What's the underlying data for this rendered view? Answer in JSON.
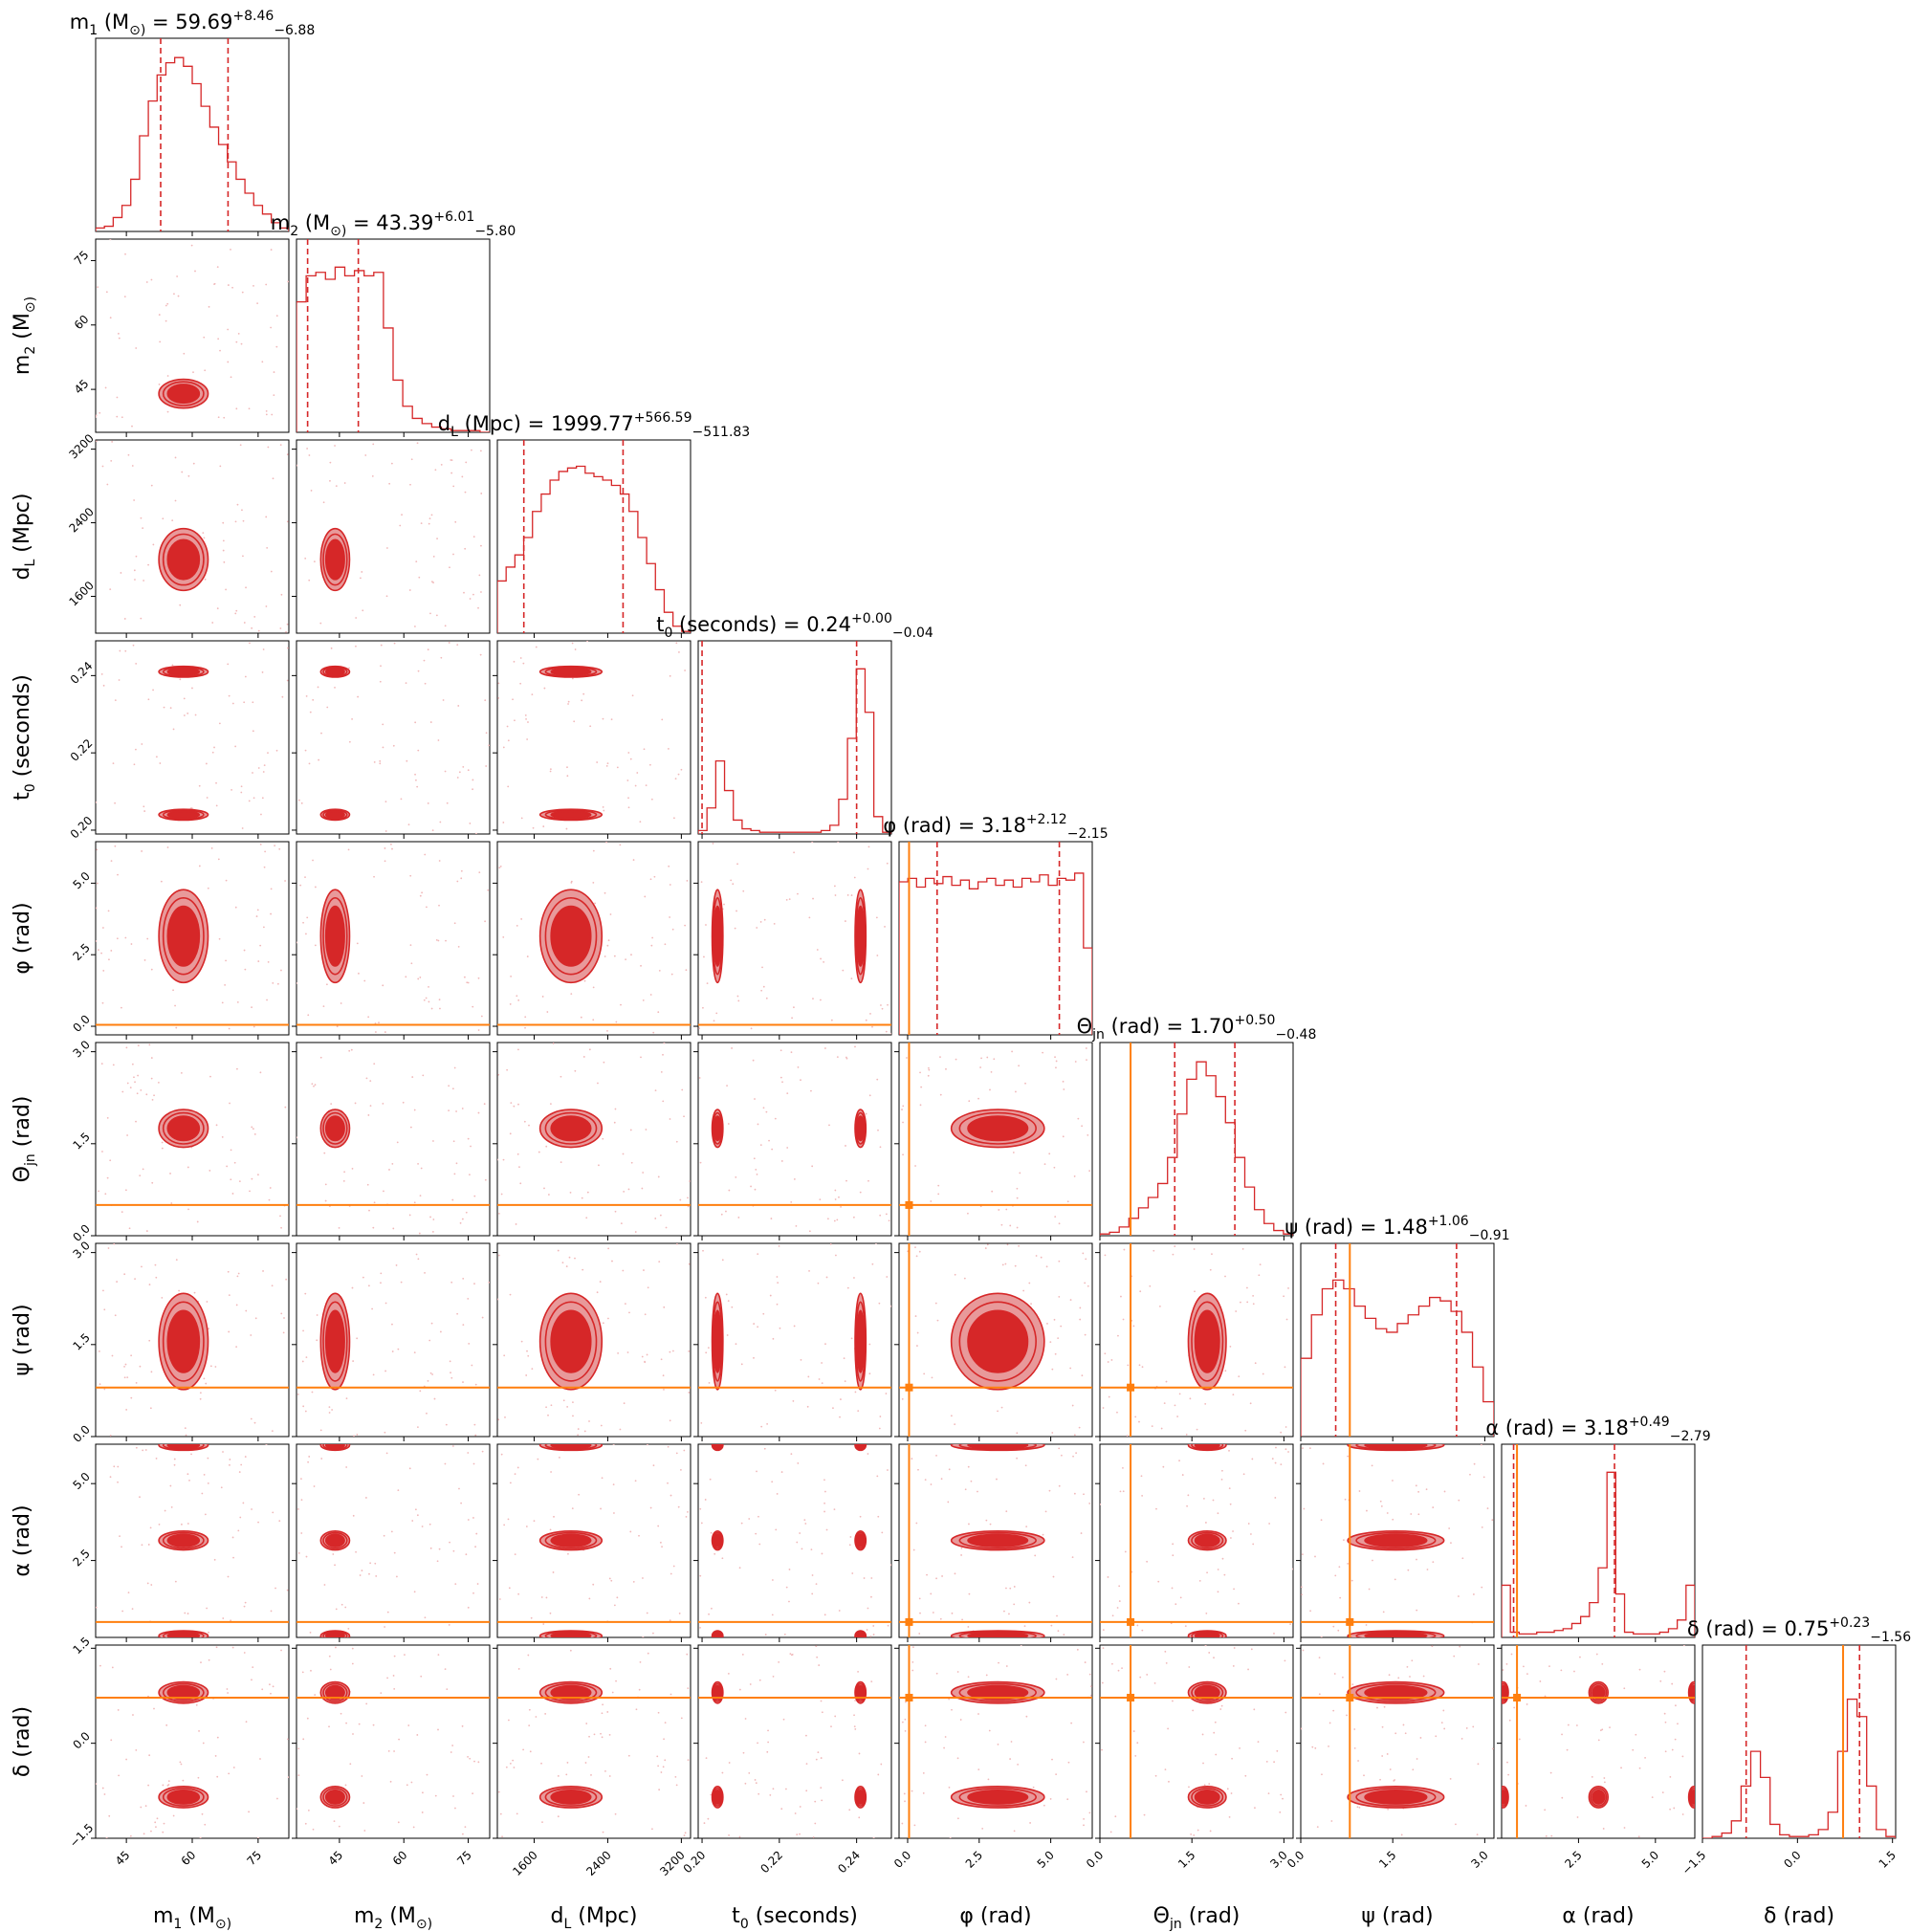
{
  "chart_data": {
    "type": "corner",
    "params": [
      {
        "label": "m_1 (M_⊙)",
        "title": "m_1 (M_⊙) = 59.69^{+8.46}_{−6.88}",
        "median": 59.69,
        "plus": 8.46,
        "minus": 6.88,
        "lim": [
          38,
          82
        ],
        "ticks": [
          45,
          60,
          75
        ],
        "tick_labels": [
          "45",
          "60",
          "75"
        ],
        "inj": null
      },
      {
        "label": "m_2 (M_⊙)",
        "title": "m_2 (M_⊙) = 43.39^{+6.01}_{−5.80}",
        "median": 43.39,
        "plus": 6.01,
        "minus": 5.8,
        "lim": [
          35,
          80
        ],
        "ticks": [
          45,
          60,
          75
        ],
        "tick_labels": [
          "45",
          "60",
          "75"
        ],
        "inj": null
      },
      {
        "label": "d_L (Mpc)",
        "title": "d_L (Mpc) = 1999.77^{+566.59}_{−511.83}",
        "median": 1999.77,
        "plus": 566.59,
        "minus": 511.83,
        "lim": [
          1200,
          3300
        ],
        "ticks": [
          1600,
          2400,
          3200
        ],
        "tick_labels": [
          "1600",
          "2400",
          "3200"
        ],
        "inj": null
      },
      {
        "label": "t_0 (seconds)",
        "title": "t_0 (seconds) = 0.24^{+0.00}_{−0.04}",
        "median": 0.24,
        "plus": 0.0,
        "minus": 0.04,
        "lim": [
          0.199,
          0.249
        ],
        "ticks": [
          0.2,
          0.22,
          0.24
        ],
        "tick_labels": [
          "0.20",
          "0.22",
          "0.24"
        ],
        "inj": null
      },
      {
        "label": "φ (rad)",
        "title": "φ (rad) = 3.18^{+2.12}_{−2.15}",
        "median": 3.18,
        "plus": 2.12,
        "minus": 2.15,
        "lim": [
          -0.3,
          6.45
        ],
        "ticks": [
          0.0,
          2.5,
          5.0
        ],
        "tick_labels": [
          "0.0",
          "2.5",
          "5.0"
        ],
        "inj": 0.05
      },
      {
        "label": "Θ_jn (rad)",
        "title": "Θ_jn (rad) = 1.70^{+0.50}_{−0.48}",
        "median": 1.7,
        "plus": 0.5,
        "minus": 0.48,
        "lim": [
          0.0,
          3.15
        ],
        "ticks": [
          0.0,
          1.5,
          3.0
        ],
        "tick_labels": [
          "0.0",
          "1.5",
          "3.0"
        ],
        "inj": 0.5
      },
      {
        "label": "ψ (rad)",
        "title": "ψ (rad) = 1.48^{+1.06}_{−0.91}",
        "median": 1.48,
        "plus": 1.06,
        "minus": 0.91,
        "lim": [
          0.0,
          3.15
        ],
        "ticks": [
          0.0,
          1.5,
          3.0
        ],
        "tick_labels": [
          "0.0",
          "1.5",
          "3.0"
        ],
        "inj": 0.8
      },
      {
        "label": "α (rad)",
        "title": "α (rad) = 3.18^{+0.49}_{−2.79}",
        "median": 3.18,
        "plus": 0.49,
        "minus": 2.79,
        "lim": [
          0.0,
          6.28
        ],
        "ticks": [
          2.5,
          5.0
        ],
        "tick_labels": [
          "2.5",
          "5.0"
        ],
        "inj": 0.5
      },
      {
        "label": "δ (rad)",
        "title": "δ (rad) = 0.75^{+0.23}_{−1.56}",
        "median": 0.75,
        "plus": 0.23,
        "minus": 1.56,
        "lim": [
          -1.5,
          1.55
        ],
        "ticks": [
          -1.5,
          0.0,
          1.5
        ],
        "tick_labels": [
          "−1.5",
          "0.0",
          "1.5"
        ],
        "inj": 0.72
      }
    ],
    "colors": {
      "posterior": "#d62728",
      "posterior_light": "#e8999a",
      "injection": "#ff7f0e"
    },
    "histograms": [
      [
        0.02,
        0.03,
        0.08,
        0.15,
        0.3,
        0.55,
        0.75,
        0.9,
        0.97,
        1.0,
        0.95,
        0.85,
        0.72,
        0.6,
        0.5,
        0.4,
        0.3,
        0.22,
        0.15,
        0.1,
        0.05,
        0.02
      ],
      [
        0.75,
        0.9,
        0.92,
        0.88,
        0.95,
        0.9,
        0.93,
        0.9,
        0.92,
        0.6,
        0.3,
        0.15,
        0.08,
        0.05,
        0.03,
        0.02,
        0.01,
        0.01,
        0.01,
        0.0
      ],
      [
        0.3,
        0.38,
        0.45,
        0.55,
        0.7,
        0.8,
        0.88,
        0.93,
        0.95,
        0.96,
        0.92,
        0.9,
        0.88,
        0.85,
        0.8,
        0.7,
        0.55,
        0.4,
        0.25,
        0.12,
        0.04,
        0.01
      ],
      [
        0.02,
        0.15,
        0.42,
        0.25,
        0.08,
        0.03,
        0.02,
        0.01,
        0.01,
        0.01,
        0.01,
        0.01,
        0.01,
        0.01,
        0.02,
        0.05,
        0.2,
        0.55,
        0.95,
        0.7,
        0.1,
        0.01
      ],
      [
        0.88,
        0.9,
        0.85,
        0.9,
        0.87,
        0.91,
        0.86,
        0.89,
        0.84,
        0.88,
        0.9,
        0.86,
        0.89,
        0.85,
        0.9,
        0.88,
        0.92,
        0.86,
        0.9,
        0.89,
        0.93,
        0.5
      ],
      [
        0.01,
        0.02,
        0.05,
        0.1,
        0.16,
        0.22,
        0.3,
        0.45,
        0.7,
        0.9,
        1.0,
        0.92,
        0.8,
        0.65,
        0.45,
        0.28,
        0.15,
        0.07,
        0.03,
        0.01
      ],
      [
        0.45,
        0.7,
        0.85,
        0.9,
        0.85,
        0.75,
        0.68,
        0.62,
        0.6,
        0.65,
        0.7,
        0.75,
        0.8,
        0.78,
        0.72,
        0.6,
        0.4,
        0.2
      ],
      [
        0.3,
        0.03,
        0.02,
        0.02,
        0.03,
        0.03,
        0.04,
        0.05,
        0.08,
        0.12,
        0.2,
        0.4,
        0.95,
        0.25,
        0.03,
        0.02,
        0.02,
        0.02,
        0.03,
        0.05,
        0.1,
        0.3
      ],
      [
        0.0,
        0.01,
        0.03,
        0.1,
        0.3,
        0.5,
        0.35,
        0.08,
        0.02,
        0.01,
        0.01,
        0.02,
        0.05,
        0.15,
        0.5,
        0.8,
        0.7,
        0.3,
        0.05,
        0.01
      ]
    ]
  }
}
